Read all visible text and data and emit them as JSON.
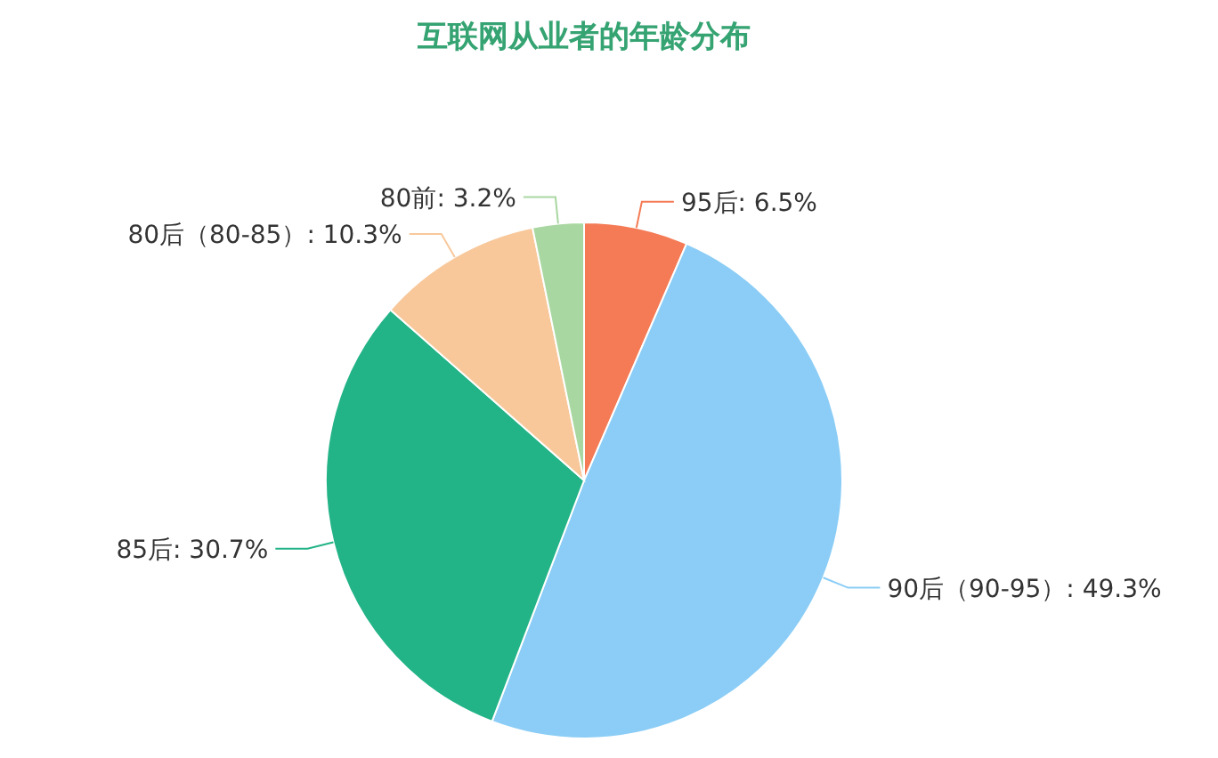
{
  "chart_data": {
    "type": "pie",
    "title": "互联网从业者的年龄分布",
    "categories": [
      "95后",
      "90后（90-95）",
      "85后",
      "80后（80-85）",
      "80前"
    ],
    "values": [
      6.5,
      49.3,
      30.7,
      10.3,
      3.2
    ],
    "colors": [
      "#f47b55",
      "#8bcdf6",
      "#22b386",
      "#f8c89b",
      "#a9d7a1"
    ],
    "value_labels": [
      "6.5%",
      "49.3%",
      "30.7%",
      "10.3%",
      "3.2%"
    ],
    "legend": false
  }
}
